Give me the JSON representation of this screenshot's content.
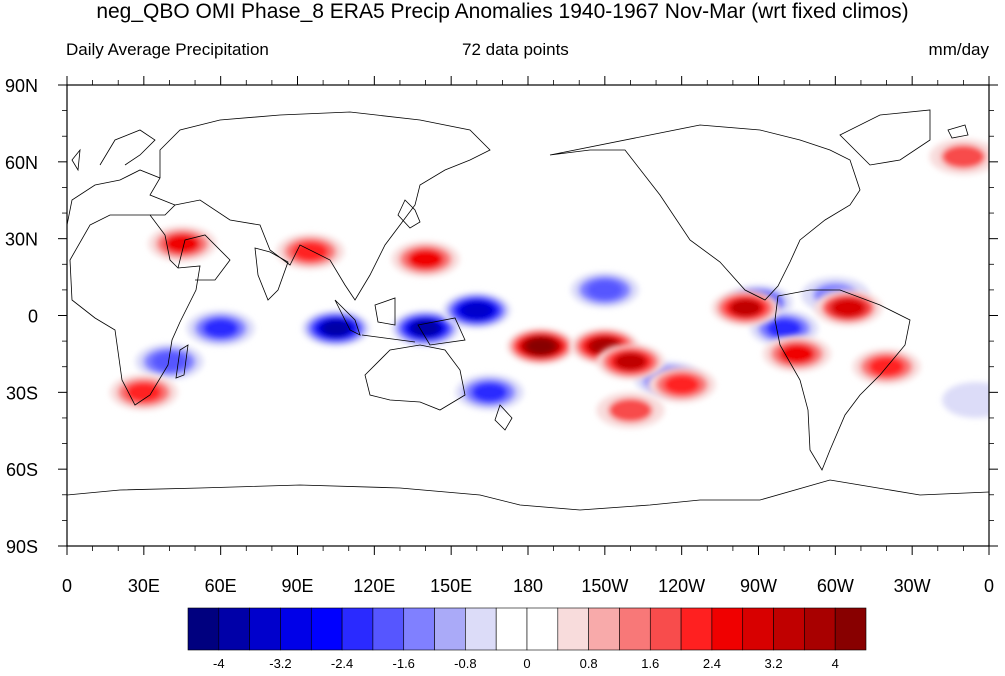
{
  "title": "neg_QBO OMI Phase_8 ERA5 Precip Anomalies 1940-1967 Nov-Mar (wrt fixed climos)",
  "subtitle_left": "Daily Average Precipitation",
  "subtitle_center": "72 data points",
  "subtitle_right": "mm/day",
  "chart_data": {
    "type": "heatmap",
    "projection": "cylindrical equidistant, centered on 180",
    "x_ticks": [
      "0",
      "30E",
      "60E",
      "90E",
      "120E",
      "150E",
      "180",
      "150W",
      "120W",
      "90W",
      "60W",
      "30W",
      "0"
    ],
    "y_ticks": [
      "90N",
      "60N",
      "30N",
      "0",
      "30S",
      "60S",
      "90S"
    ],
    "xlim": [
      0,
      360
    ],
    "ylim": [
      -90,
      90
    ],
    "colorbar": {
      "labels": [
        "-4",
        "-3.2",
        "-2.4",
        "-1.6",
        "-0.8",
        "0",
        "0.8",
        "1.6",
        "2.4",
        "3.2",
        "4"
      ],
      "levels": [
        -4.4,
        -4,
        -3.6,
        -3.2,
        -2.8,
        -2.4,
        -2,
        -1.6,
        -1.2,
        -0.8,
        -0.4,
        0,
        0.4,
        0.8,
        1.2,
        1.6,
        2,
        2.4,
        2.8,
        3.2,
        3.6,
        4,
        4.4
      ],
      "colors": [
        "#00007f",
        "#0000a8",
        "#0000cc",
        "#0000e8",
        "#0000ff",
        "#2a2aff",
        "#5656ff",
        "#8080ff",
        "#aaaaf8",
        "#dcdcf8",
        "#ffffff",
        "#ffffff",
        "#f8dcdc",
        "#f8aaaa",
        "#f87878",
        "#f84c4c",
        "#ff2020",
        "#f00000",
        "#d80000",
        "#c00000",
        "#a80000",
        "#880000"
      ]
    },
    "anomaly_features": [
      {
        "lon": 105,
        "lat": -5,
        "value": -4.0
      },
      {
        "lon": 140,
        "lat": -5,
        "value": -4.0
      },
      {
        "lon": 160,
        "lat": 2,
        "value": -3.6
      },
      {
        "lon": 60,
        "lat": -5,
        "value": -2.4
      },
      {
        "lon": 40,
        "lat": -18,
        "value": -2.0
      },
      {
        "lon": 165,
        "lat": -30,
        "value": -2.4
      },
      {
        "lon": 210,
        "lat": 10,
        "value": -2.0
      },
      {
        "lon": 235,
        "lat": -25,
        "value": -2.4
      },
      {
        "lon": 270,
        "lat": 5,
        "value": -2.8
      },
      {
        "lon": 280,
        "lat": -5,
        "value": -2.4
      },
      {
        "lon": 300,
        "lat": 8,
        "value": -1.6
      },
      {
        "lon": 355,
        "lat": -33,
        "value": -1.2
      },
      {
        "lon": 185,
        "lat": -12,
        "value": 4.4
      },
      {
        "lon": 210,
        "lat": -12,
        "value": 3.6
      },
      {
        "lon": 220,
        "lat": -18,
        "value": 3.2
      },
      {
        "lon": 140,
        "lat": 22,
        "value": 2.4
      },
      {
        "lon": 95,
        "lat": 25,
        "value": 2.0
      },
      {
        "lon": 45,
        "lat": 28,
        "value": 2.4
      },
      {
        "lon": 265,
        "lat": 3,
        "value": 3.2
      },
      {
        "lon": 305,
        "lat": 3,
        "value": 2.8
      },
      {
        "lon": 285,
        "lat": -15,
        "value": 2.4
      },
      {
        "lon": 320,
        "lat": -20,
        "value": 2.0
      },
      {
        "lon": 30,
        "lat": -30,
        "value": 2.0
      },
      {
        "lon": 240,
        "lat": -27,
        "value": 2.0
      },
      {
        "lon": 220,
        "lat": -37,
        "value": 1.6
      },
      {
        "lon": 350,
        "lat": 62,
        "value": 1.6
      }
    ]
  }
}
